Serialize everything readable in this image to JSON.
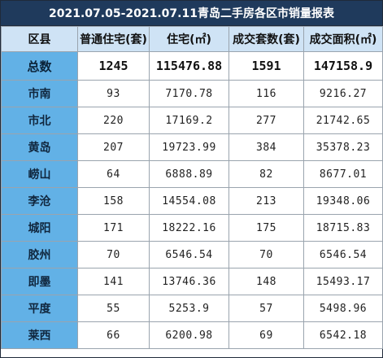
{
  "title": "2021.07.05-2021.07.11青岛二手房各区市销量报表",
  "headers": [
    "区县",
    "普通住宅(套)",
    "住宅(㎡)",
    "成交套数(套)",
    "成交面积(㎡)"
  ],
  "total": {
    "label": "总数",
    "values": [
      "1245",
      "115476.88",
      "1591",
      "147158.9"
    ]
  },
  "rows": [
    {
      "label": "市南",
      "values": [
        "93",
        "7170.78",
        "116",
        "9216.27"
      ]
    },
    {
      "label": "市北",
      "values": [
        "220",
        "17169.2",
        "277",
        "21742.65"
      ]
    },
    {
      "label": "黄岛",
      "values": [
        "207",
        "19723.99",
        "384",
        "35378.23"
      ]
    },
    {
      "label": "崂山",
      "values": [
        "64",
        "6888.89",
        "82",
        "8677.01"
      ]
    },
    {
      "label": "李沧",
      "values": [
        "158",
        "14554.08",
        "213",
        "19348.06"
      ]
    },
    {
      "label": "城阳",
      "values": [
        "171",
        "18222.16",
        "175",
        "18715.83"
      ]
    },
    {
      "label": "胶州",
      "values": [
        "70",
        "6546.54",
        "70",
        "6546.54"
      ]
    },
    {
      "label": "即墨",
      "values": [
        "141",
        "13746.36",
        "148",
        "15493.17"
      ]
    },
    {
      "label": "平度",
      "values": [
        "55",
        "5253.9",
        "57",
        "5498.96"
      ]
    },
    {
      "label": "莱西",
      "values": [
        "66",
        "6200.98",
        "69",
        "6542.18"
      ]
    }
  ]
}
